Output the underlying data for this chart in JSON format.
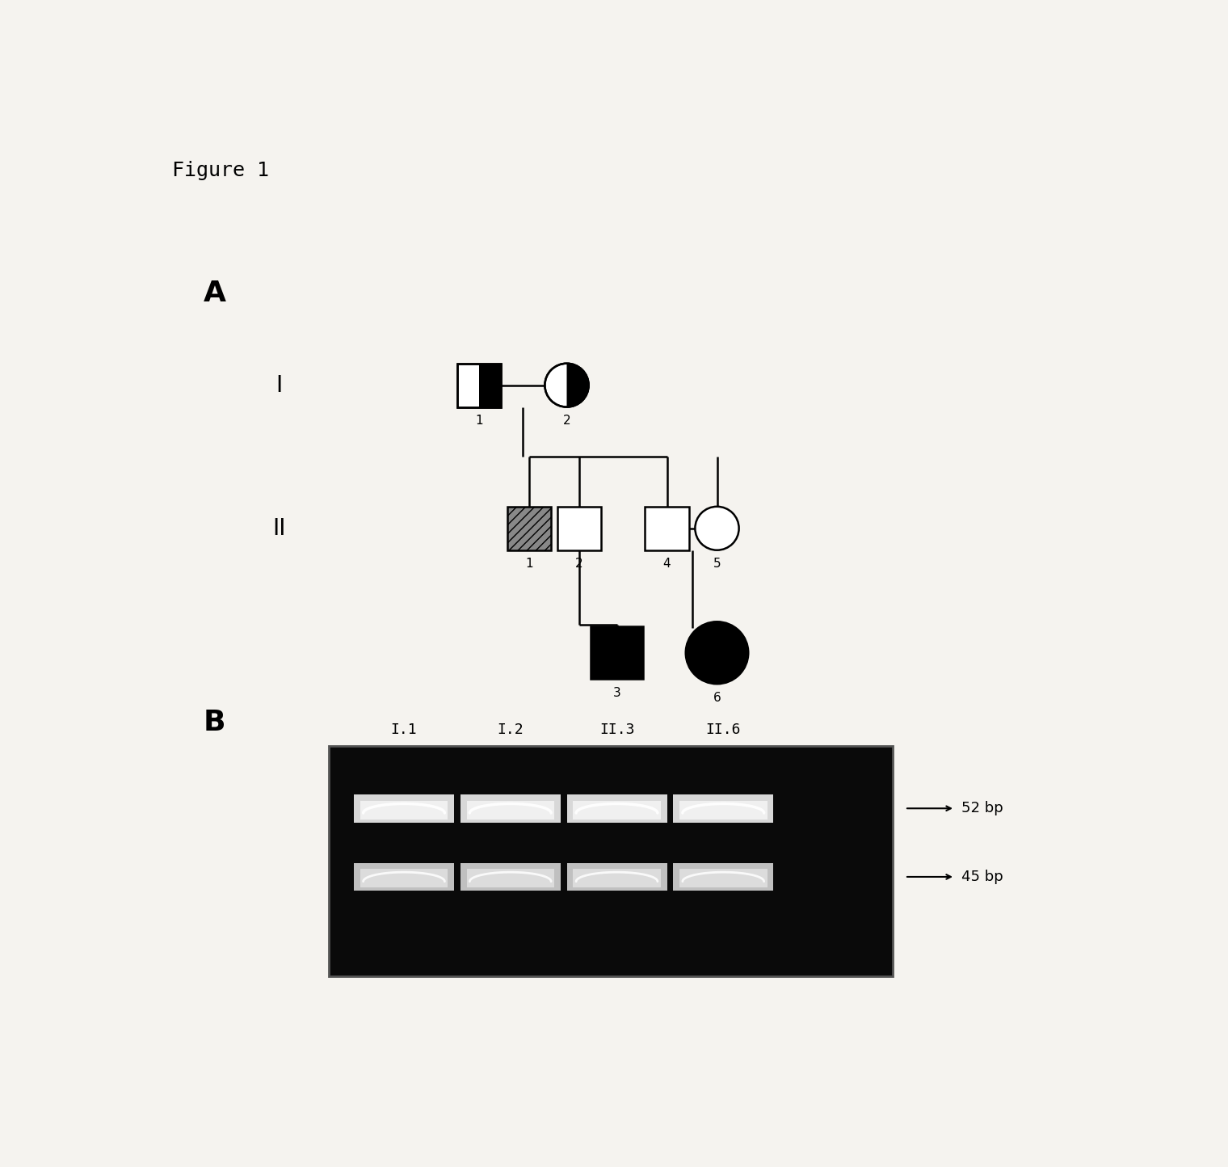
{
  "figure_title": "Figure 1",
  "background_color": "#f5f3ef",
  "panel_A_label": "A",
  "panel_B_label": "B",
  "generation_labels": [
    "I",
    "II"
  ],
  "gel_lane_labels": [
    "I.1",
    "I.2",
    "II.3",
    "II.6"
  ],
  "gel_band_labels": [
    "52 bp",
    "45 bp"
  ],
  "gel_bg": "#0a0a0a",
  "gel_band_bright": "#e8e8e8",
  "gel_band_dim": "#b0b0b0"
}
